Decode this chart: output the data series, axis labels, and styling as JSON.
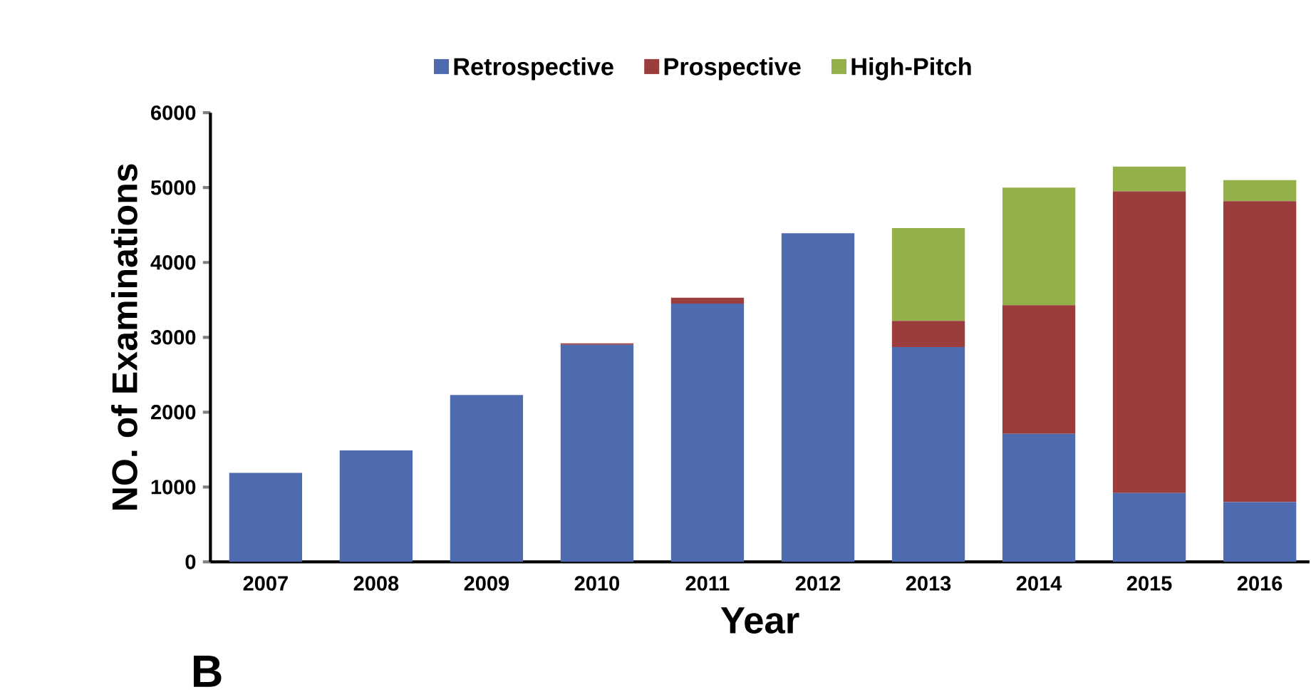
{
  "chart_data": {
    "type": "bar",
    "stacked": true,
    "xlabel": "Year",
    "ylabel": "NO. of Examinations",
    "annotations": [
      "B"
    ],
    "categories": [
      "2007",
      "2008",
      "2009",
      "2010",
      "2011",
      "2012",
      "2013",
      "2014",
      "2015",
      "2016"
    ],
    "series": [
      {
        "name": "Retrospective",
        "color": "#4f6bb0",
        "values": [
          1190,
          1490,
          2230,
          2900,
          3450,
          4390,
          2870,
          1710,
          920,
          800
        ]
      },
      {
        "name": "Prospective",
        "color": "#9b3d3d",
        "values": [
          0,
          0,
          0,
          20,
          80,
          0,
          350,
          1720,
          4030,
          4020
        ]
      },
      {
        "name": "High-Pitch",
        "color": "#93b04a",
        "values": [
          0,
          0,
          0,
          0,
          0,
          0,
          1240,
          1570,
          330,
          280
        ]
      }
    ],
    "ylim": [
      0,
      6000
    ],
    "yticks": [
      0,
      1000,
      2000,
      3000,
      4000,
      5000,
      6000
    ],
    "legend": "top",
    "grid": false
  }
}
